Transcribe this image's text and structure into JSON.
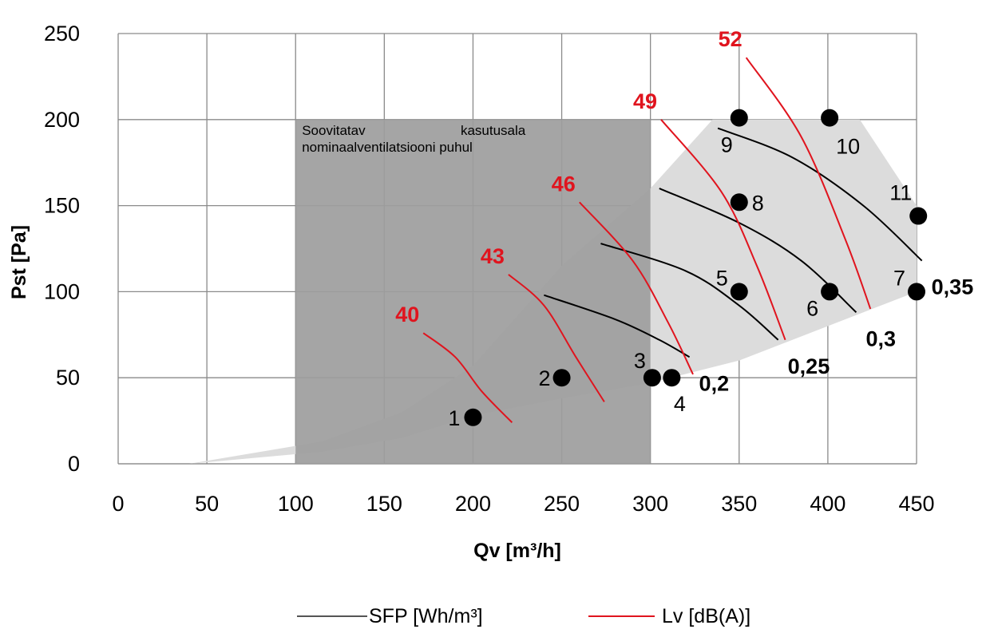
{
  "chart_data": {
    "type": "line",
    "xlabel": "Qv [m³/h]",
    "ylabel": "Pst [Pa]",
    "xlim": [
      0,
      450
    ],
    "ylim": [
      0,
      250
    ],
    "x_ticks": [
      0,
      50,
      100,
      150,
      200,
      250,
      300,
      350,
      400,
      450
    ],
    "y_ticks": [
      0,
      50,
      100,
      150,
      200,
      250
    ],
    "grid": true,
    "legend_position": "bottom",
    "colors": {
      "grid": "#8a8a8a",
      "operating_area": "#dcdcdc",
      "recommended_zone": "#9d9d9d",
      "sfp": "#000000",
      "lv": "#e0141e",
      "points": "#000000"
    },
    "recommended_zone": {
      "label_line1_left": "Soovitatav",
      "label_line1_right": "kasutusala",
      "label_line2": "nominaalventilatsiooni puhul",
      "x_range": [
        100,
        300
      ],
      "y_range": [
        0,
        200
      ]
    },
    "operating_area": [
      [
        40,
        0
      ],
      [
        115,
        7
      ],
      [
        160,
        15
      ],
      [
        200,
        28
      ],
      [
        250,
        38
      ],
      [
        300,
        47
      ],
      [
        350,
        60
      ],
      [
        400,
        80
      ],
      [
        450,
        100
      ],
      [
        450,
        150
      ],
      [
        418,
        200
      ],
      [
        335,
        200
      ],
      [
        300,
        160
      ],
      [
        250,
        115
      ],
      [
        200,
        57
      ],
      [
        160,
        30
      ],
      [
        115,
        13
      ],
      [
        40,
        0
      ]
    ],
    "points": [
      {
        "label": "1",
        "x": 200,
        "y": 27
      },
      {
        "label": "2",
        "x": 250,
        "y": 50
      },
      {
        "label": "3",
        "x": 301,
        "y": 50
      },
      {
        "label": "4",
        "x": 312,
        "y": 50
      },
      {
        "label": "5",
        "x": 350,
        "y": 100
      },
      {
        "label": "6",
        "x": 401,
        "y": 100
      },
      {
        "label": "7",
        "x": 450,
        "y": 100
      },
      {
        "label": "8",
        "x": 350,
        "y": 152
      },
      {
        "label": "9",
        "x": 350,
        "y": 201
      },
      {
        "label": "10",
        "x": 401,
        "y": 201
      },
      {
        "label": "11",
        "x": 451,
        "y": 144
      }
    ],
    "series": [
      {
        "group": "SFP",
        "label": "0,2",
        "values": [
          [
            240,
            98
          ],
          [
            280,
            84
          ],
          [
            305,
            72
          ],
          [
            322,
            62
          ]
        ]
      },
      {
        "group": "SFP",
        "label": "0,25",
        "values": [
          [
            272,
            128
          ],
          [
            320,
            112
          ],
          [
            350,
            92
          ],
          [
            372,
            72
          ]
        ]
      },
      {
        "group": "SFP",
        "label": "0,3",
        "values": [
          [
            305,
            160
          ],
          [
            350,
            140
          ],
          [
            385,
            118
          ],
          [
            416,
            88
          ]
        ]
      },
      {
        "group": "SFP",
        "label": "0,35",
        "values": [
          [
            338,
            195
          ],
          [
            380,
            178
          ],
          [
            420,
            150
          ],
          [
            453,
            118
          ]
        ]
      },
      {
        "group": "Lv",
        "label": "40",
        "values": [
          [
            172,
            76
          ],
          [
            190,
            62
          ],
          [
            205,
            42
          ],
          [
            222,
            24
          ]
        ]
      },
      {
        "group": "Lv",
        "label": "43",
        "values": [
          [
            220,
            110
          ],
          [
            240,
            92
          ],
          [
            258,
            62
          ],
          [
            274,
            36
          ]
        ]
      },
      {
        "group": "Lv",
        "label": "46",
        "values": [
          [
            260,
            152
          ],
          [
            290,
            118
          ],
          [
            310,
            82
          ],
          [
            324,
            52
          ]
        ]
      },
      {
        "group": "Lv",
        "label": "49",
        "values": [
          [
            306,
            200
          ],
          [
            340,
            158
          ],
          [
            360,
            115
          ],
          [
            376,
            72
          ]
        ]
      },
      {
        "group": "Lv",
        "label": "52",
        "values": [
          [
            354,
            236
          ],
          [
            385,
            190
          ],
          [
            410,
            130
          ],
          [
            424,
            90
          ]
        ]
      }
    ],
    "legend": [
      {
        "label": "SFP [Wh/m³]",
        "color": "#555555"
      },
      {
        "label": "Lv [dB(A)]",
        "color": "#e0141e"
      }
    ]
  }
}
